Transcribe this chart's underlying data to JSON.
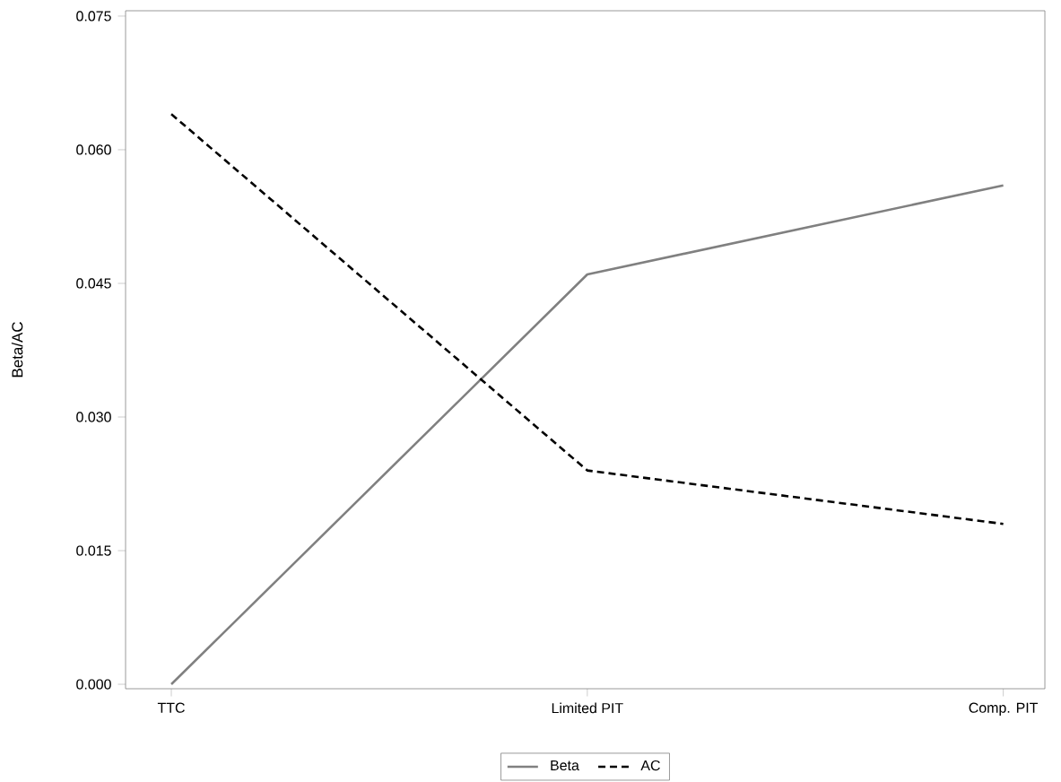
{
  "chart_data": {
    "type": "line",
    "ylabel": "Beta/AC",
    "categories": [
      "TTC",
      "Limited PIT",
      "Comp. PIT"
    ],
    "series": [
      {
        "name": "Beta",
        "color": "#808080",
        "line_style": "solid",
        "values": [
          0.0,
          0.046,
          0.056
        ]
      },
      {
        "name": "AC",
        "color": "#000000",
        "line_style": "dashed",
        "values": [
          0.064,
          0.024,
          0.018
        ]
      }
    ],
    "ylim": [
      -0.0005,
      0.0756
    ],
    "yticks": [
      {
        "value": 0,
        "label": "0.000"
      },
      {
        "value": 0.015,
        "label": "0.015"
      },
      {
        "value": 0.03,
        "label": "0.030"
      },
      {
        "value": 0.045,
        "label": "0.045"
      },
      {
        "value": 0.06,
        "label": "0.060"
      },
      {
        "value": 0.075,
        "label": "0.075"
      }
    ],
    "legend": "bottom",
    "grid": false,
    "marker": "none"
  }
}
